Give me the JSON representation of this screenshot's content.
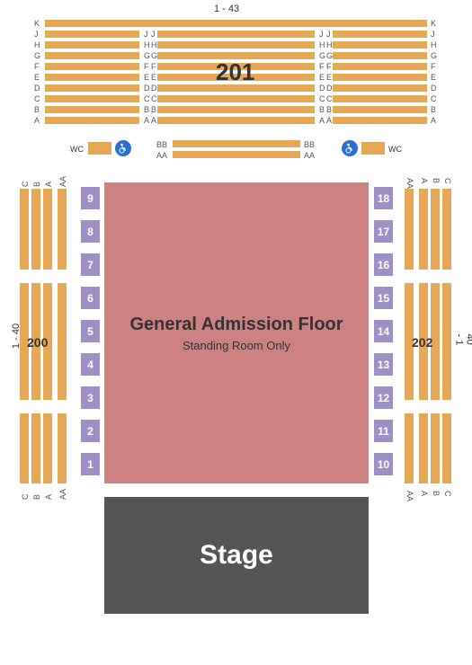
{
  "colors": {
    "seat": "#e6a756",
    "box": "#9e8fc4",
    "ga": "#cb8280",
    "stage": "#555555"
  },
  "top": {
    "range": "1 - 43",
    "section_label": "201",
    "rows_left": [
      "K",
      "J",
      "H",
      "G",
      "F",
      "E",
      "D",
      "C",
      "B",
      "A"
    ],
    "rows_right": [
      "K",
      "J",
      "H",
      "G",
      "F",
      "E",
      "D",
      "C",
      "B",
      "A"
    ],
    "rows_gap": [
      "J",
      "H",
      "G",
      "F",
      "E",
      "D",
      "C",
      "B",
      "A"
    ],
    "wc_left": "WC",
    "wc_right": "WC",
    "aa": "AA",
    "bb": "BB"
  },
  "floor": {
    "title": "General Admission Floor",
    "subtitle": "Standing Room Only"
  },
  "stage": {
    "label": "Stage"
  },
  "boxes_left": [
    "9",
    "8",
    "7",
    "6",
    "5",
    "4",
    "3",
    "2",
    "1"
  ],
  "boxes_right": [
    "18",
    "17",
    "16",
    "15",
    "14",
    "13",
    "12",
    "11",
    "10"
  ],
  "side_left": {
    "range": "1 - 40",
    "section": "200",
    "cols_top": [
      "C",
      "B",
      "A",
      "AA"
    ],
    "cols_bot": [
      "C",
      "B",
      "A",
      "AA"
    ]
  },
  "side_right": {
    "range": "40 - 1",
    "section": "202",
    "cols_top": [
      "AA",
      "A",
      "B",
      "C"
    ],
    "cols_bot": [
      "AA",
      "A",
      "B",
      "C"
    ]
  }
}
